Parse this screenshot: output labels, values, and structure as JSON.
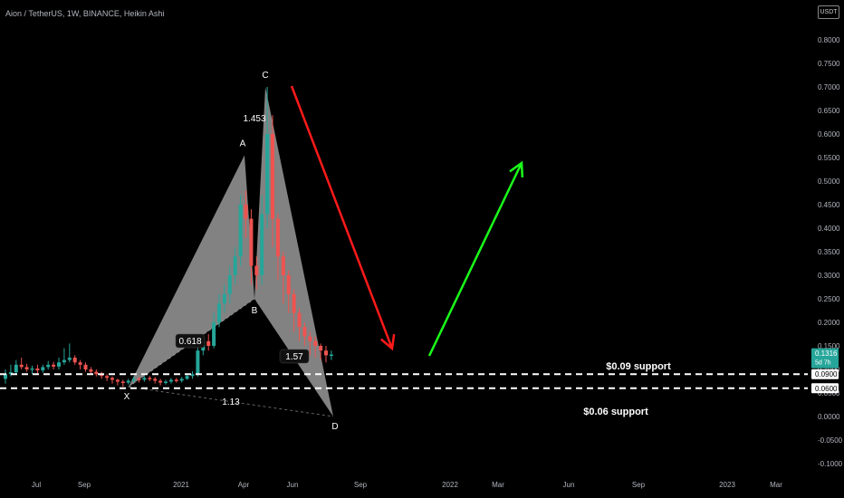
{
  "header": {
    "title": "Aion / TetherUS, 1W, BINANCE, Heikin Ashi",
    "currency": "USDT"
  },
  "chart_data": {
    "type": "candlestick",
    "y_axis": {
      "range": [
        -0.12,
        0.85
      ],
      "ticks": [
        "0.8000",
        "0.7500",
        "0.7000",
        "0.6500",
        "0.6000",
        "0.5500",
        "0.5000",
        "0.4500",
        "0.4000",
        "0.3500",
        "0.3000",
        "0.2500",
        "0.2000",
        "0.1500",
        "0.1000",
        "0.0500",
        "0.0000",
        "-0.0500",
        "-0.1000"
      ]
    },
    "x_axis": {
      "labels": [
        "Jul",
        "Sep",
        "2021",
        "Apr",
        "Jun",
        "Sep",
        "2022",
        "Mar",
        "Jun",
        "Sep",
        "2023",
        "Mar"
      ]
    },
    "price_tags": [
      {
        "label": "0.1316",
        "sub": "5d 7h",
        "value": 0.1316,
        "color": "#26a69a"
      },
      {
        "label": "0.0900",
        "value": 0.09,
        "color": "#ffffff"
      },
      {
        "label": "0.0600",
        "value": 0.06,
        "color": "#ffffff"
      }
    ],
    "support_lines": [
      {
        "value": 0.09,
        "label": "$0.09 support"
      },
      {
        "value": 0.06,
        "label": "$0.06 support"
      }
    ],
    "pattern_points": [
      {
        "label": "X",
        "value": 0.063
      },
      {
        "label": "A",
        "value": 0.555
      },
      {
        "label": "B",
        "value": 0.25
      },
      {
        "label": "C",
        "value": 0.7
      },
      {
        "label": "D",
        "value": 0.0
      }
    ],
    "ratio_labels": [
      "0.618",
      "1.453",
      "1.57",
      "1.13"
    ],
    "candles": [
      [
        0.08,
        0.09,
        0.07,
        0.1
      ],
      [
        0.09,
        0.094,
        0.085,
        0.11
      ],
      [
        0.094,
        0.11,
        0.09,
        0.12
      ],
      [
        0.11,
        0.105,
        0.1,
        0.125
      ],
      [
        0.105,
        0.1,
        0.095,
        0.112
      ],
      [
        0.1,
        0.102,
        0.09,
        0.108
      ],
      [
        0.102,
        0.098,
        0.092,
        0.11
      ],
      [
        0.098,
        0.105,
        0.093,
        0.11
      ],
      [
        0.105,
        0.11,
        0.1,
        0.118
      ],
      [
        0.11,
        0.106,
        0.1,
        0.116
      ],
      [
        0.106,
        0.115,
        0.1,
        0.125
      ],
      [
        0.115,
        0.12,
        0.11,
        0.145
      ],
      [
        0.12,
        0.125,
        0.115,
        0.155
      ],
      [
        0.125,
        0.115,
        0.11,
        0.13
      ],
      [
        0.115,
        0.11,
        0.1,
        0.12
      ],
      [
        0.11,
        0.1,
        0.095,
        0.115
      ],
      [
        0.1,
        0.095,
        0.09,
        0.105
      ],
      [
        0.095,
        0.09,
        0.085,
        0.1
      ],
      [
        0.09,
        0.086,
        0.08,
        0.095
      ],
      [
        0.086,
        0.082,
        0.075,
        0.09
      ],
      [
        0.082,
        0.078,
        0.07,
        0.085
      ],
      [
        0.078,
        0.074,
        0.066,
        0.08
      ],
      [
        0.074,
        0.072,
        0.063,
        0.078
      ],
      [
        0.072,
        0.076,
        0.068,
        0.08
      ],
      [
        0.076,
        0.08,
        0.072,
        0.085
      ],
      [
        0.08,
        0.078,
        0.072,
        0.084
      ],
      [
        0.078,
        0.082,
        0.074,
        0.086
      ],
      [
        0.082,
        0.08,
        0.075,
        0.086
      ],
      [
        0.08,
        0.076,
        0.07,
        0.084
      ],
      [
        0.076,
        0.072,
        0.066,
        0.08
      ],
      [
        0.072,
        0.074,
        0.068,
        0.078
      ],
      [
        0.074,
        0.078,
        0.07,
        0.082
      ],
      [
        0.078,
        0.076,
        0.072,
        0.082
      ],
      [
        0.076,
        0.08,
        0.072,
        0.084
      ],
      [
        0.08,
        0.086,
        0.078,
        0.09
      ],
      [
        0.086,
        0.09,
        0.08,
        0.096
      ],
      [
        0.09,
        0.14,
        0.085,
        0.15
      ],
      [
        0.14,
        0.16,
        0.13,
        0.17
      ],
      [
        0.16,
        0.15,
        0.14,
        0.175
      ],
      [
        0.15,
        0.2,
        0.145,
        0.22
      ],
      [
        0.2,
        0.24,
        0.19,
        0.26
      ],
      [
        0.24,
        0.26,
        0.22,
        0.28
      ],
      [
        0.26,
        0.3,
        0.24,
        0.32
      ],
      [
        0.3,
        0.34,
        0.28,
        0.36
      ],
      [
        0.34,
        0.45,
        0.32,
        0.47
      ],
      [
        0.45,
        0.42,
        0.38,
        0.48
      ],
      [
        0.42,
        0.32,
        0.28,
        0.44
      ],
      [
        0.32,
        0.3,
        0.27,
        0.34
      ],
      [
        0.3,
        0.43,
        0.28,
        0.47
      ],
      [
        0.43,
        0.6,
        0.4,
        0.7
      ],
      [
        0.6,
        0.42,
        0.36,
        0.64
      ],
      [
        0.42,
        0.34,
        0.29,
        0.43
      ],
      [
        0.34,
        0.3,
        0.24,
        0.35
      ],
      [
        0.3,
        0.26,
        0.22,
        0.31
      ],
      [
        0.26,
        0.22,
        0.18,
        0.27
      ],
      [
        0.22,
        0.19,
        0.16,
        0.23
      ],
      [
        0.19,
        0.17,
        0.15,
        0.2
      ],
      [
        0.17,
        0.16,
        0.13,
        0.18
      ],
      [
        0.16,
        0.15,
        0.125,
        0.17
      ],
      [
        0.15,
        0.14,
        0.12,
        0.155
      ],
      [
        0.14,
        0.13,
        0.115,
        0.15
      ],
      [
        0.13,
        0.1316,
        0.12,
        0.14
      ]
    ],
    "annotations": [
      {
        "type": "arrow",
        "color": "#ff1a1a",
        "direction": "down",
        "from_value": 0.7,
        "to_value": 0.14
      },
      {
        "type": "arrow",
        "color": "#1aff1a",
        "direction": "up",
        "from_value": 0.14,
        "to_value": 0.55
      }
    ]
  }
}
